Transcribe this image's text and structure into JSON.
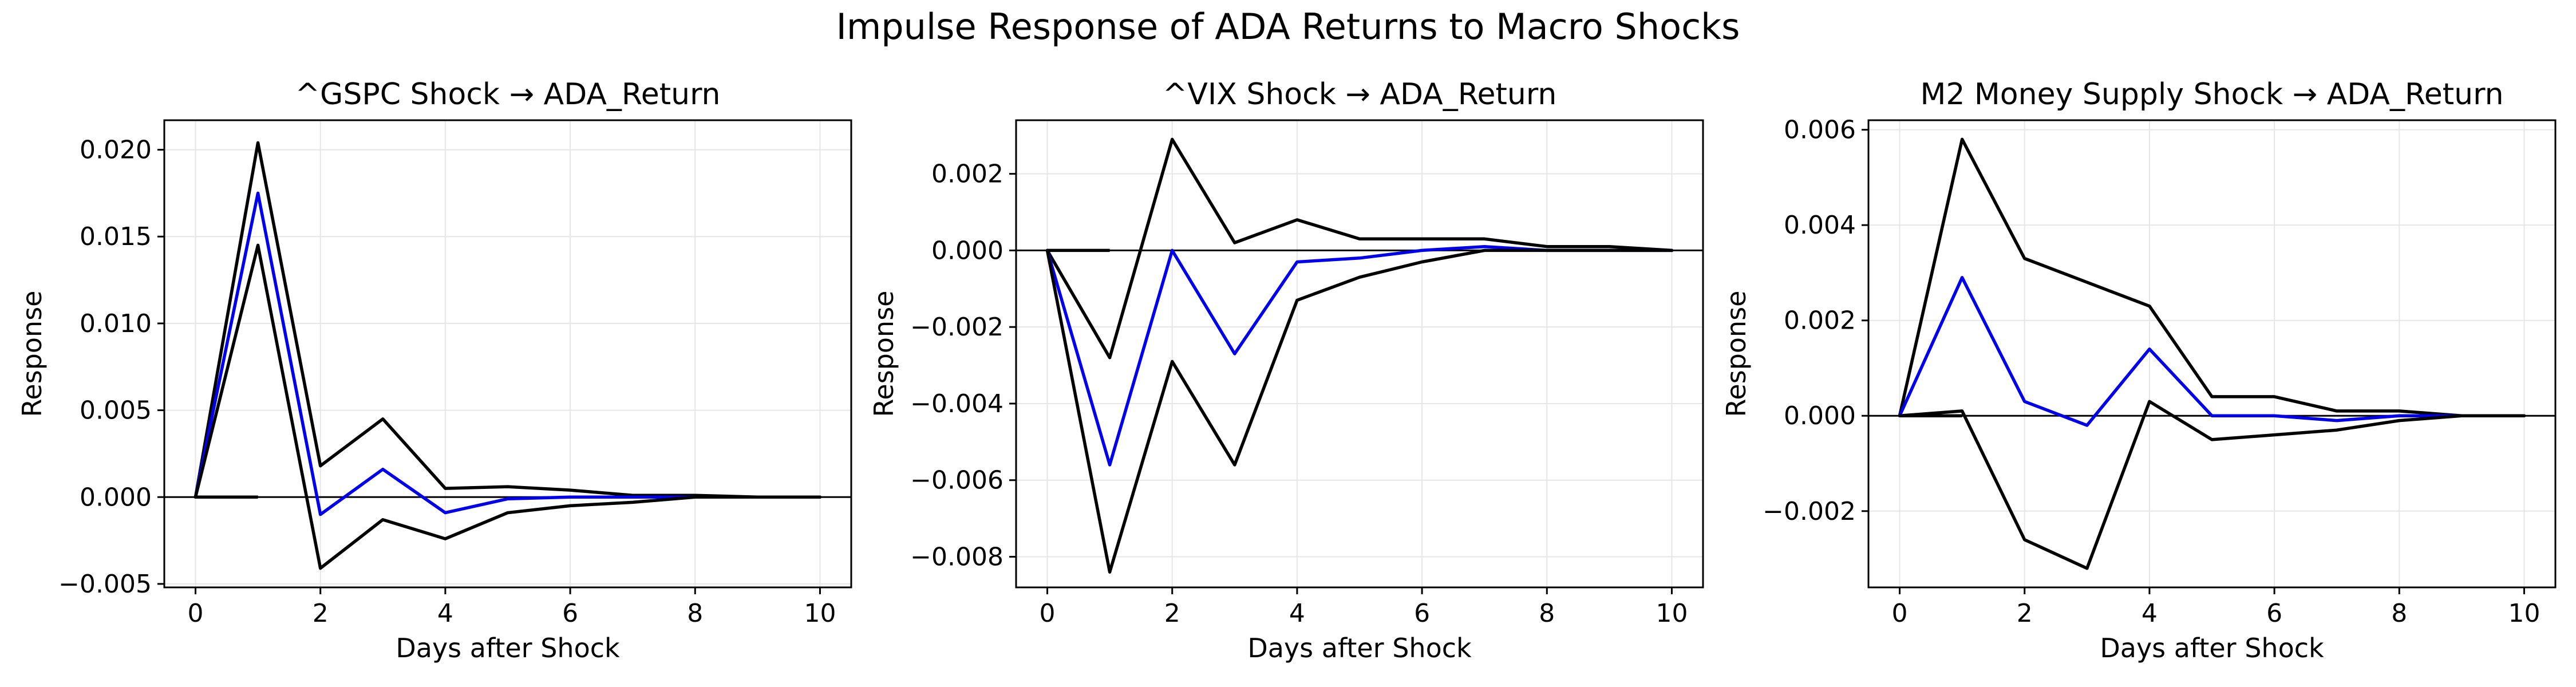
{
  "figure": {
    "title": "Impulse Response of ADA Returns to Macro Shocks"
  },
  "chart_data": [
    {
      "type": "line",
      "title": "^GSPC Shock → ADA_Return",
      "xlabel": "Days after Shock",
      "ylabel": "Response",
      "xlim": [
        -0.5,
        10.5
      ],
      "ylim": [
        -0.0052,
        0.0217
      ],
      "xticks": [
        0,
        2,
        4,
        6,
        8,
        10
      ],
      "xtick_labels": [
        "0",
        "2",
        "4",
        "6",
        "8",
        "10"
      ],
      "yticks": [
        -0.005,
        0.0,
        0.005,
        0.01,
        0.015,
        0.02
      ],
      "ytick_labels": [
        "−0.005",
        "0.000",
        "0.005",
        "0.010",
        "0.015",
        "0.020"
      ],
      "grid": true,
      "zero_line": true,
      "x": [
        0,
        1,
        2,
        3,
        4,
        5,
        6,
        7,
        8,
        9,
        10
      ],
      "series": [
        {
          "role": "upper",
          "color": "#000000",
          "values": [
            0.0,
            0.0204,
            0.0018,
            0.0045,
            0.0005,
            0.0006,
            0.0004,
            0.0001,
            0.0001,
            0.0,
            0.0
          ]
        },
        {
          "role": "estimate",
          "color": "#0000ee",
          "values": [
            0.0,
            0.0175,
            -0.001,
            0.0016,
            -0.0009,
            -0.0001,
            0.0,
            0.0,
            0.0,
            0.0,
            0.0
          ]
        },
        {
          "role": "lower",
          "color": "#000000",
          "values": [
            0.0,
            0.0145,
            -0.0041,
            -0.0013,
            -0.0024,
            -0.0009,
            -0.0005,
            -0.0003,
            0.0,
            0.0,
            0.0
          ]
        }
      ],
      "baseline_segment": {
        "x": [
          0,
          1
        ],
        "y": [
          0.0,
          0.0
        ]
      }
    },
    {
      "type": "line",
      "title": "^VIX Shock → ADA_Return",
      "xlabel": "Days after Shock",
      "ylabel": "Response",
      "xlim": [
        -0.5,
        10.5
      ],
      "ylim": [
        -0.0088,
        0.0034
      ],
      "xticks": [
        0,
        2,
        4,
        6,
        8,
        10
      ],
      "xtick_labels": [
        "0",
        "2",
        "4",
        "6",
        "8",
        "10"
      ],
      "yticks": [
        -0.008,
        -0.006,
        -0.004,
        -0.002,
        0.0,
        0.002
      ],
      "ytick_labels": [
        "−0.008",
        "−0.006",
        "−0.004",
        "−0.002",
        "0.000",
        "0.002"
      ],
      "grid": true,
      "zero_line": true,
      "x": [
        0,
        1,
        2,
        3,
        4,
        5,
        6,
        7,
        8,
        9,
        10
      ],
      "series": [
        {
          "role": "upper",
          "color": "#000000",
          "values": [
            0.0,
            -0.0028,
            0.0029,
            0.0002,
            0.0008,
            0.0003,
            0.0003,
            0.0003,
            0.0001,
            0.0001,
            0.0
          ]
        },
        {
          "role": "estimate",
          "color": "#0000ee",
          "values": [
            0.0,
            -0.0056,
            0.0,
            -0.0027,
            -0.0003,
            -0.0002,
            0.0,
            0.0001,
            0.0,
            0.0,
            0.0
          ]
        },
        {
          "role": "lower",
          "color": "#000000",
          "values": [
            0.0,
            -0.0084,
            -0.0029,
            -0.0056,
            -0.0013,
            -0.0007,
            -0.0003,
            0.0,
            0.0,
            0.0,
            0.0
          ]
        }
      ],
      "baseline_segment": {
        "x": [
          0,
          1
        ],
        "y": [
          0.0,
          0.0
        ]
      }
    },
    {
      "type": "line",
      "title": "M2 Money Supply Shock → ADA_Return",
      "xlabel": "Days after Shock",
      "ylabel": "Response",
      "xlim": [
        -0.5,
        10.5
      ],
      "ylim": [
        -0.0036,
        0.0062
      ],
      "xticks": [
        0,
        2,
        4,
        6,
        8,
        10
      ],
      "xtick_labels": [
        "0",
        "2",
        "4",
        "6",
        "8",
        "10"
      ],
      "yticks": [
        -0.002,
        0.0,
        0.002,
        0.004,
        0.006
      ],
      "ytick_labels": [
        "−0.002",
        "0.000",
        "0.002",
        "0.004",
        "0.006"
      ],
      "grid": true,
      "zero_line": true,
      "x": [
        0,
        1,
        2,
        3,
        4,
        5,
        6,
        7,
        8,
        9,
        10
      ],
      "series": [
        {
          "role": "upper",
          "color": "#000000",
          "values": [
            0.0,
            0.0058,
            0.0033,
            0.0028,
            0.0023,
            0.0004,
            0.0004,
            0.0001,
            0.0001,
            0.0,
            0.0
          ]
        },
        {
          "role": "estimate",
          "color": "#0000ee",
          "values": [
            0.0,
            0.0029,
            0.0003,
            -0.0002,
            0.0014,
            0.0,
            0.0,
            -0.0001,
            0.0,
            0.0,
            0.0
          ]
        },
        {
          "role": "lower",
          "color": "#000000",
          "values": [
            0.0,
            0.0001,
            -0.0026,
            -0.0032,
            0.0003,
            -0.0005,
            -0.0004,
            -0.0003,
            -0.0001,
            0.0,
            0.0
          ]
        }
      ],
      "baseline_segment": {
        "x": [
          0,
          1
        ],
        "y": [
          0.0,
          0.0
        ]
      }
    }
  ]
}
